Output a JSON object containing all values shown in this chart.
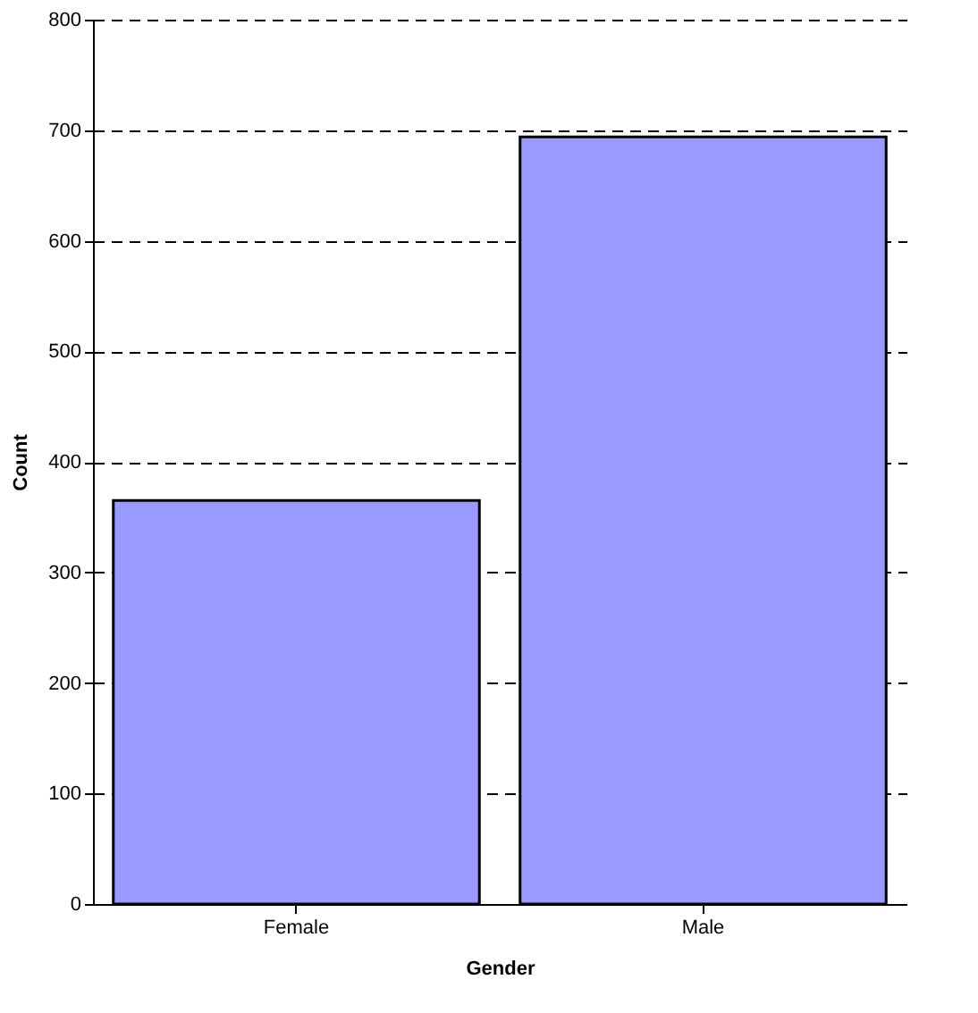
{
  "chart_data": {
    "type": "bar",
    "xlabel": "Gender",
    "ylabel": "Count",
    "categories": [
      "Female",
      "Male"
    ],
    "values": [
      365,
      694
    ],
    "color": "#9999ff",
    "ylim": [
      0,
      800
    ],
    "yticks": [
      0,
      100,
      200,
      300,
      400,
      500,
      600,
      700,
      800
    ],
    "grid": "y"
  }
}
